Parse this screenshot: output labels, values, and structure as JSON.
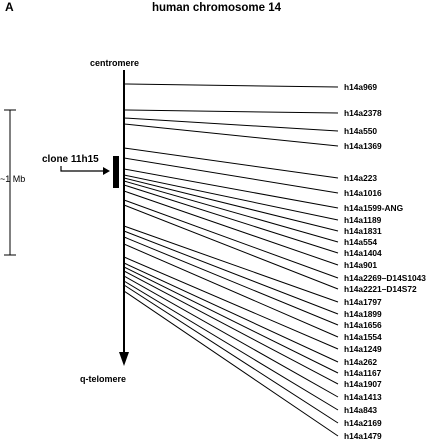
{
  "panel_label": "A",
  "title": "human chromosome 14",
  "centromere_label": "centromere",
  "telomere_label": "q-telomere",
  "clone_label": "clone  11h15",
  "scale_label": "~1 Mb",
  "markers": [
    "h14a969",
    "h14a2378",
    "h14a550",
    "h14a1369",
    "h14a223",
    "h14a1016",
    "h14a1599-ANG",
    "h14a1189",
    "h14a1831",
    "h14a554",
    "h14a1404",
    "h14a901",
    "h14a2269–D14S1043",
    "h14a2221–D14S72",
    "h14a1797",
    "h14a1899",
    "h14a1656",
    "h14a1554",
    "h14a1249",
    "h14a262",
    "h14a1167",
    "h14a1907",
    "h14a1413",
    "h14a843",
    "h14a2169",
    "h14a1479"
  ]
}
